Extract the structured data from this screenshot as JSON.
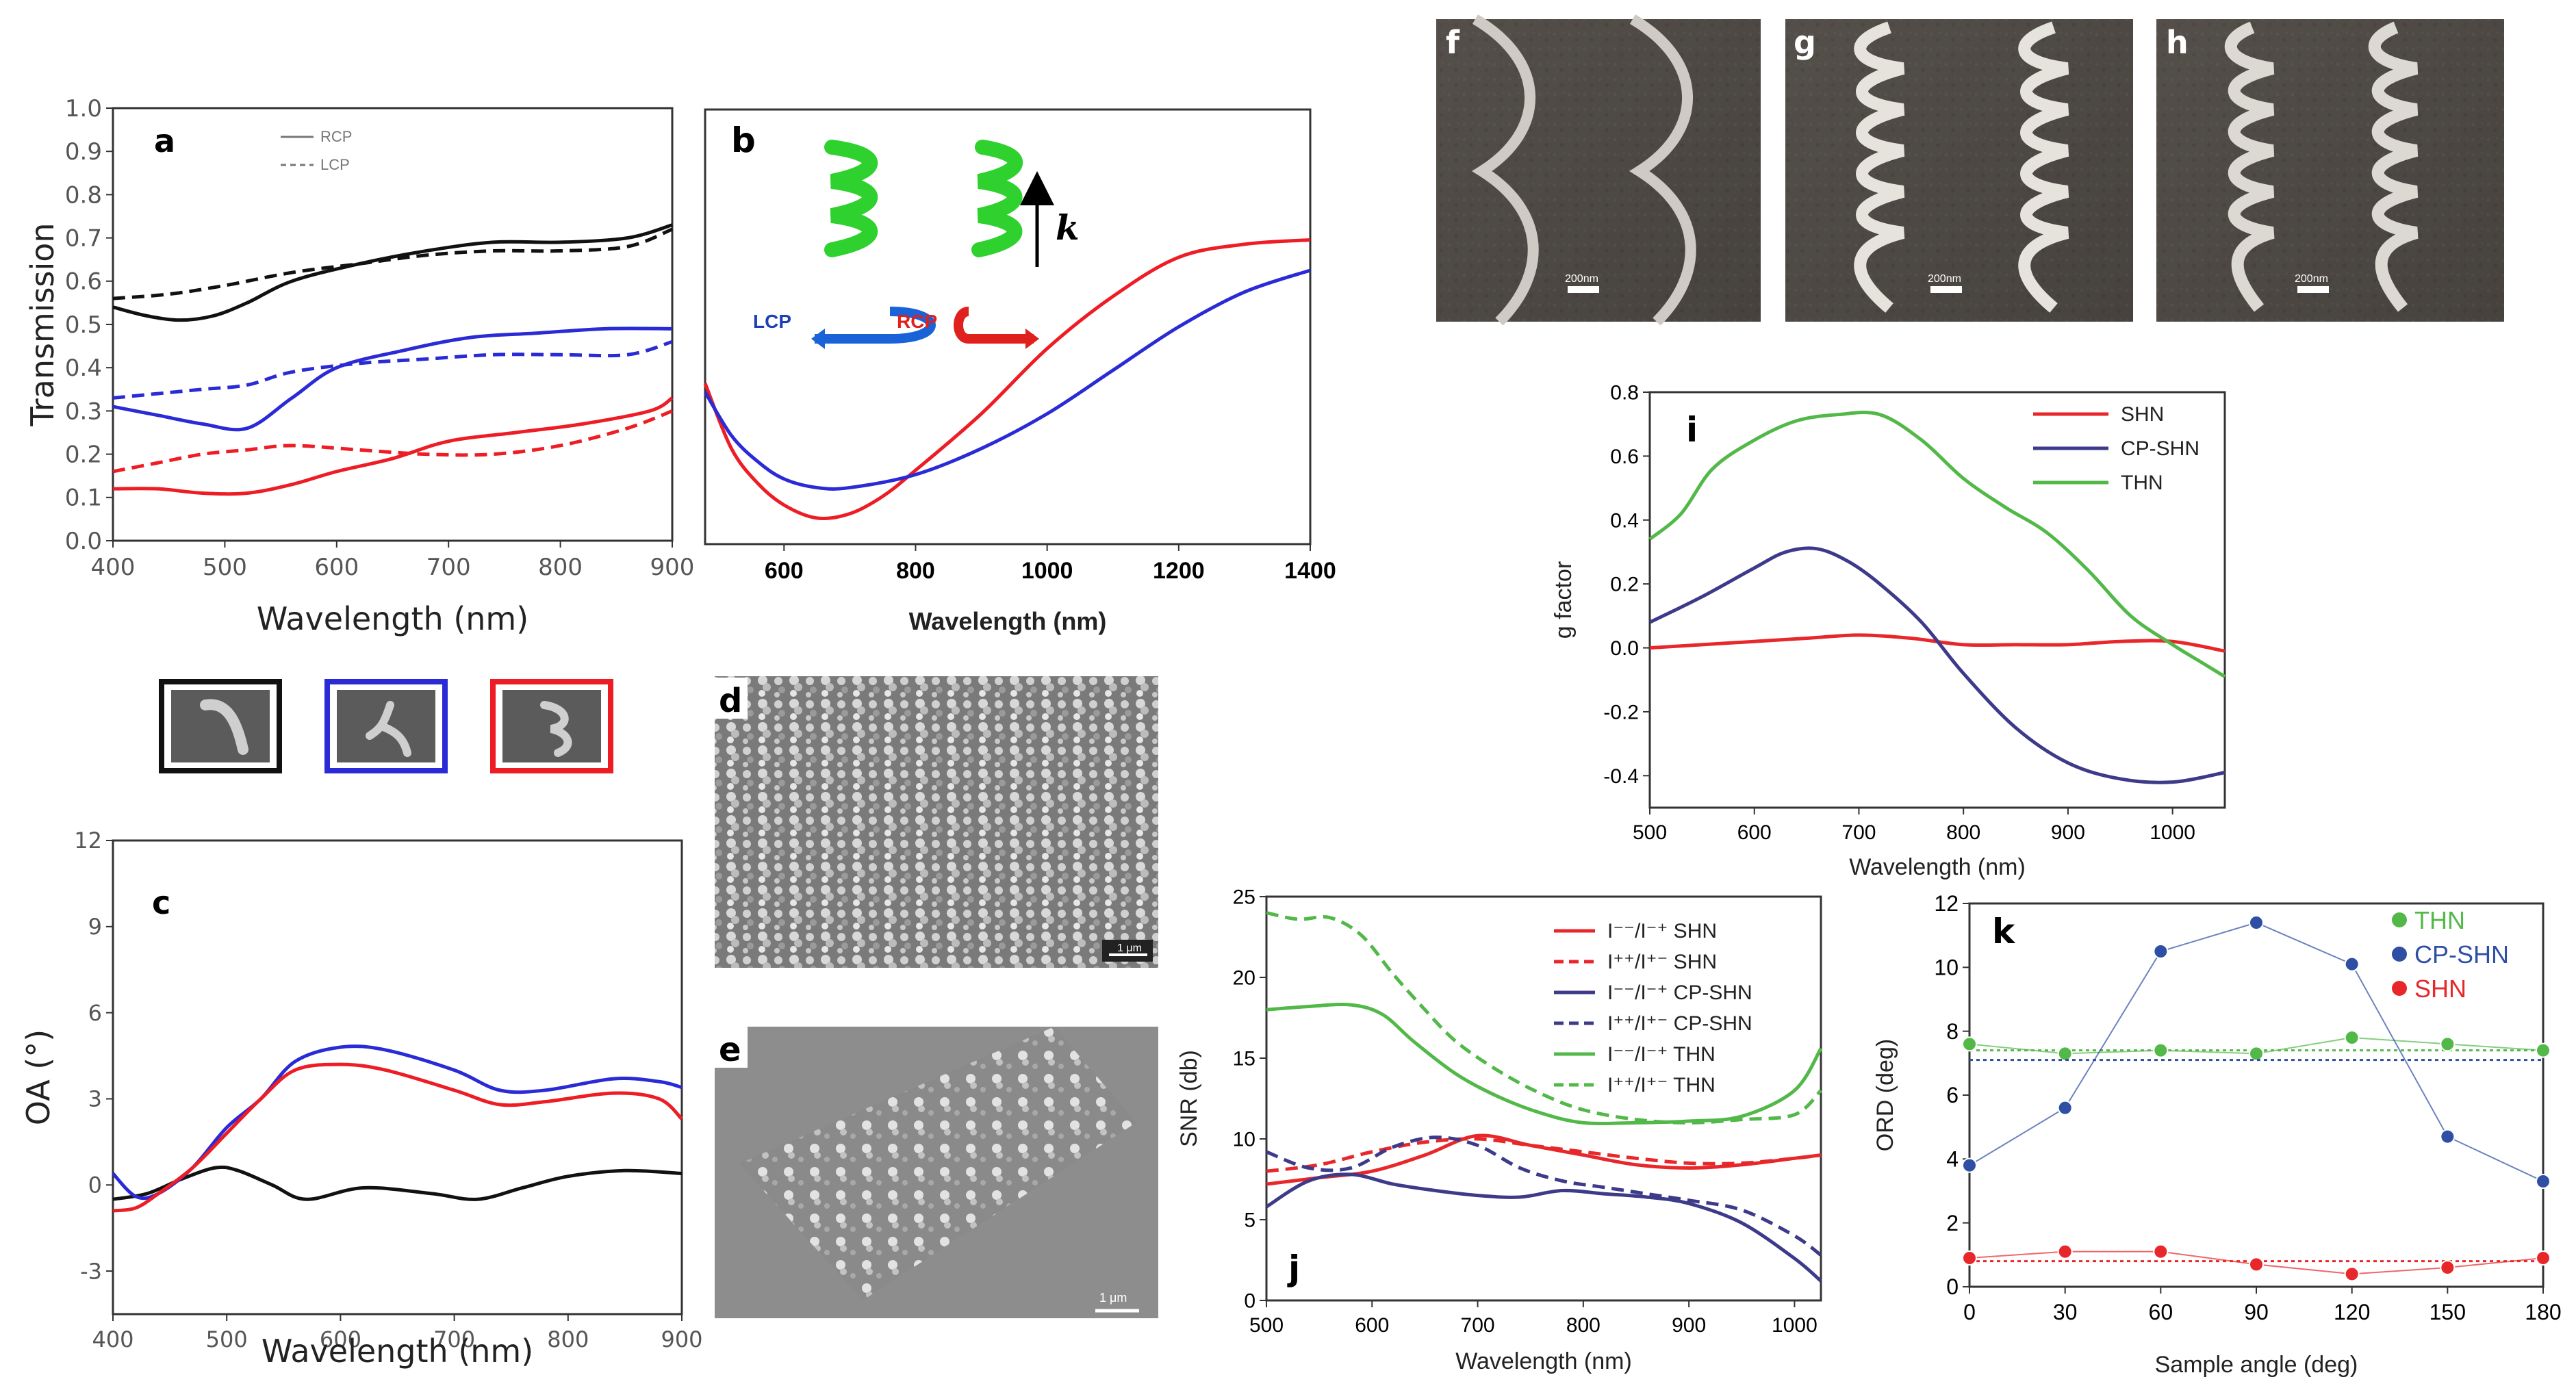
{
  "chart_data": [
    {
      "id": "a",
      "type": "line",
      "panel_label": "a",
      "xlabel": "Wavelength (nm)",
      "ylabel": "Transmission",
      "xlim": [
        400,
        900
      ],
      "ylim": [
        0,
        1.0
      ],
      "xticks": [
        "400",
        "500",
        "600",
        "700",
        "800",
        "900"
      ],
      "yticks": [
        "0.0",
        "0.1",
        "0.2",
        "0.3",
        "0.4",
        "0.5",
        "0.6",
        "0.7",
        "0.8",
        "0.9",
        "1.0"
      ],
      "legend": [
        "RCP",
        "LCP"
      ],
      "colors": {
        "black": "#111111",
        "blue": "#2a2ad6",
        "red": "#ee1c24"
      },
      "series": [
        {
          "name": "black RCP",
          "color": "#111111",
          "dash": false,
          "x": [
            400,
            430,
            460,
            490,
            520,
            560,
            620,
            680,
            740,
            800,
            860,
            900
          ],
          "y": [
            0.54,
            0.52,
            0.51,
            0.52,
            0.55,
            0.6,
            0.64,
            0.67,
            0.69,
            0.69,
            0.7,
            0.73
          ]
        },
        {
          "name": "black LCP",
          "color": "#111111",
          "dash": true,
          "x": [
            400,
            450,
            500,
            560,
            620,
            680,
            740,
            800,
            860,
            900
          ],
          "y": [
            0.56,
            0.57,
            0.59,
            0.62,
            0.64,
            0.66,
            0.67,
            0.67,
            0.68,
            0.72
          ]
        },
        {
          "name": "blue RCP",
          "color": "#2a2ad6",
          "dash": false,
          "x": [
            400,
            440,
            480,
            520,
            560,
            600,
            660,
            720,
            780,
            840,
            900
          ],
          "y": [
            0.31,
            0.29,
            0.27,
            0.26,
            0.33,
            0.4,
            0.44,
            0.47,
            0.48,
            0.49,
            0.49
          ]
        },
        {
          "name": "blue LCP",
          "color": "#2a2ad6",
          "dash": true,
          "x": [
            400,
            440,
            480,
            520,
            560,
            620,
            680,
            740,
            800,
            860,
            900
          ],
          "y": [
            0.33,
            0.34,
            0.35,
            0.36,
            0.39,
            0.41,
            0.42,
            0.43,
            0.43,
            0.43,
            0.46
          ]
        },
        {
          "name": "red RCP",
          "color": "#ee1c24",
          "dash": false,
          "x": [
            400,
            440,
            480,
            520,
            560,
            600,
            650,
            700,
            760,
            820,
            880,
            900
          ],
          "y": [
            0.12,
            0.12,
            0.11,
            0.11,
            0.13,
            0.16,
            0.19,
            0.23,
            0.25,
            0.27,
            0.3,
            0.33
          ]
        },
        {
          "name": "red LCP",
          "color": "#ee1c24",
          "dash": true,
          "x": [
            400,
            440,
            480,
            520,
            560,
            620,
            680,
            740,
            800,
            860,
            900
          ],
          "y": [
            0.16,
            0.18,
            0.2,
            0.21,
            0.22,
            0.21,
            0.2,
            0.2,
            0.22,
            0.26,
            0.3
          ]
        }
      ]
    },
    {
      "id": "b",
      "type": "line",
      "panel_label": "b",
      "xlabel": "Wavelength (nm)",
      "ylabel": "",
      "xlim": [
        480,
        1400
      ],
      "ylim": [
        0,
        1
      ],
      "xticks": [
        "600",
        "800",
        "1000",
        "1200",
        "1400"
      ],
      "annotations": [
        "LCP",
        "RCP",
        "k"
      ],
      "series": [
        {
          "name": "red",
          "color": "#ee1c24",
          "x": [
            480,
            520,
            560,
            600,
            650,
            700,
            750,
            800,
            900,
            1000,
            1100,
            1200,
            1300,
            1400
          ],
          "y": [
            0.37,
            0.22,
            0.14,
            0.09,
            0.06,
            0.07,
            0.11,
            0.17,
            0.3,
            0.45,
            0.57,
            0.66,
            0.69,
            0.7
          ]
        },
        {
          "name": "blue",
          "color": "#2a2ad6",
          "x": [
            480,
            520,
            560,
            600,
            650,
            700,
            800,
            900,
            1000,
            1100,
            1200,
            1300,
            1400
          ],
          "y": [
            0.35,
            0.25,
            0.19,
            0.15,
            0.13,
            0.13,
            0.16,
            0.22,
            0.3,
            0.4,
            0.5,
            0.58,
            0.63
          ]
        }
      ]
    },
    {
      "id": "c",
      "type": "line",
      "panel_label": "c",
      "xlabel": "Wavelength (nm)",
      "ylabel": "OA (°)",
      "xlim": [
        400,
        900
      ],
      "ylim": [
        -4.5,
        12
      ],
      "xticks": [
        "400",
        "500",
        "600",
        "700",
        "800",
        "900"
      ],
      "yticks": [
        "-3",
        "0",
        "3",
        "6",
        "9",
        "12"
      ],
      "series": [
        {
          "name": "black",
          "color": "#111111",
          "x": [
            400,
            430,
            460,
            490,
            510,
            540,
            570,
            620,
            680,
            720,
            760,
            800,
            850,
            900
          ],
          "y": [
            -0.5,
            -0.3,
            0.2,
            0.6,
            0.5,
            0.0,
            -0.5,
            -0.1,
            -0.3,
            -0.5,
            -0.1,
            0.3,
            0.5,
            0.4
          ]
        },
        {
          "name": "blue",
          "color": "#2a2ad6",
          "x": [
            400,
            420,
            440,
            470,
            500,
            530,
            560,
            600,
            640,
            700,
            740,
            780,
            840,
            880,
            900
          ],
          "y": [
            0.4,
            -0.4,
            -0.3,
            0.6,
            2.0,
            3.0,
            4.3,
            4.8,
            4.7,
            4.0,
            3.3,
            3.3,
            3.7,
            3.6,
            3.4
          ]
        },
        {
          "name": "red",
          "color": "#ee1c24",
          "x": [
            400,
            420,
            440,
            470,
            500,
            530,
            560,
            600,
            640,
            700,
            740,
            780,
            840,
            880,
            900
          ],
          "y": [
            -0.9,
            -0.8,
            -0.3,
            0.6,
            1.8,
            3.0,
            4.0,
            4.2,
            4.0,
            3.3,
            2.8,
            2.9,
            3.2,
            3.0,
            2.3
          ]
        }
      ]
    },
    {
      "id": "i",
      "type": "line",
      "panel_label": "i",
      "xlabel": "Wavelength (nm)",
      "ylabel": "g factor",
      "xlim": [
        500,
        1050
      ],
      "ylim": [
        -0.5,
        0.8
      ],
      "xticks": [
        "500",
        "600",
        "700",
        "800",
        "900",
        "1000"
      ],
      "yticks": [
        "-0.4",
        "-0.2",
        "0.0",
        "0.2",
        "0.4",
        "0.6",
        "0.8"
      ],
      "legend": [
        "SHN",
        "CP-SHN",
        "THN"
      ],
      "series": [
        {
          "name": "SHN",
          "color": "#e8272a",
          "x": [
            500,
            550,
            600,
            650,
            700,
            750,
            800,
            850,
            900,
            950,
            1000,
            1050
          ],
          "y": [
            0.0,
            0.01,
            0.02,
            0.03,
            0.04,
            0.03,
            0.01,
            0.01,
            0.01,
            0.02,
            0.02,
            -0.01
          ]
        },
        {
          "name": "CP-SHN",
          "color": "#3d3a8a",
          "x": [
            500,
            550,
            600,
            630,
            660,
            690,
            720,
            760,
            800,
            850,
            900,
            950,
            1000,
            1050
          ],
          "y": [
            0.08,
            0.16,
            0.25,
            0.3,
            0.31,
            0.27,
            0.2,
            0.08,
            -0.08,
            -0.25,
            -0.36,
            -0.41,
            -0.42,
            -0.39
          ]
        },
        {
          "name": "THN",
          "color": "#52b848",
          "x": [
            500,
            530,
            560,
            600,
            640,
            680,
            720,
            760,
            800,
            840,
            880,
            920,
            960,
            1000,
            1030,
            1050
          ],
          "y": [
            0.34,
            0.42,
            0.56,
            0.65,
            0.71,
            0.73,
            0.73,
            0.65,
            0.53,
            0.44,
            0.36,
            0.24,
            0.1,
            0.01,
            -0.05,
            -0.09
          ]
        }
      ]
    },
    {
      "id": "j",
      "type": "line",
      "panel_label": "j",
      "xlabel": "Wavelength (nm)",
      "ylabel": "SNR (db)",
      "xlim": [
        500,
        1025
      ],
      "ylim": [
        0,
        25
      ],
      "xticks": [
        "500",
        "600",
        "700",
        "800",
        "900",
        "1000"
      ],
      "yticks": [
        "0",
        "5",
        "10",
        "15",
        "20",
        "25"
      ],
      "legend": [
        "I⁻⁻/I⁻⁺  SHN",
        "I⁺⁺/I⁺⁻  SHN",
        "I⁻⁻/I⁻⁺  CP-SHN",
        "I⁺⁺/I⁺⁻  CP-SHN",
        "I⁻⁻/I⁻⁺  THN",
        "I⁺⁺/I⁺⁻  THN"
      ],
      "series": [
        {
          "name": "I--/I-+ SHN",
          "color": "#e8272a",
          "dash": false,
          "x": [
            500,
            550,
            600,
            650,
            700,
            750,
            800,
            850,
            900,
            950,
            1000,
            1025
          ],
          "y": [
            7.2,
            7.6,
            8.0,
            9.0,
            10.2,
            9.6,
            9.0,
            8.4,
            8.2,
            8.4,
            8.8,
            9.0
          ]
        },
        {
          "name": "I++/I+- SHN",
          "color": "#e8272a",
          "dash": true,
          "x": [
            500,
            550,
            600,
            650,
            700,
            750,
            800,
            850,
            900,
            950,
            1000,
            1025
          ],
          "y": [
            8.0,
            8.4,
            9.2,
            9.8,
            10.0,
            9.6,
            9.2,
            8.8,
            8.5,
            8.5,
            8.8,
            9.0
          ]
        },
        {
          "name": "I--/I-+ CP-SHN",
          "color": "#3d3a8a",
          "dash": false,
          "x": [
            500,
            540,
            580,
            620,
            660,
            700,
            740,
            780,
            820,
            860,
            900,
            950,
            1000,
            1025
          ],
          "y": [
            5.8,
            7.4,
            7.8,
            7.2,
            6.8,
            6.5,
            6.4,
            6.8,
            6.6,
            6.4,
            6.0,
            4.8,
            2.6,
            1.2
          ]
        },
        {
          "name": "I++/I+- CP-SHN",
          "color": "#3d3a8a",
          "dash": true,
          "x": [
            500,
            540,
            580,
            620,
            660,
            700,
            740,
            780,
            820,
            860,
            900,
            950,
            1000,
            1025
          ],
          "y": [
            9.2,
            8.2,
            8.2,
            9.5,
            10.1,
            9.6,
            8.2,
            7.4,
            7.0,
            6.6,
            6.2,
            5.6,
            4.0,
            2.8
          ]
        },
        {
          "name": "I--/I-+ THN",
          "color": "#52b848",
          "dash": false,
          "x": [
            500,
            540,
            580,
            610,
            640,
            680,
            720,
            760,
            800,
            850,
            900,
            950,
            1000,
            1025
          ],
          "y": [
            18.0,
            18.2,
            18.3,
            17.7,
            16.0,
            14.0,
            12.6,
            11.6,
            11.0,
            11.0,
            11.1,
            11.4,
            13.0,
            15.6
          ]
        },
        {
          "name": "I++/I+- THN",
          "color": "#52b848",
          "dash": true,
          "x": [
            500,
            530,
            560,
            590,
            620,
            650,
            680,
            720,
            760,
            800,
            850,
            900,
            950,
            1000,
            1025
          ],
          "y": [
            24.0,
            23.6,
            23.7,
            22.6,
            20.2,
            18.0,
            16.0,
            14.2,
            12.8,
            11.8,
            11.2,
            11.0,
            11.2,
            11.5,
            13.0
          ]
        }
      ]
    },
    {
      "id": "k",
      "type": "scatter",
      "panel_label": "k",
      "xlabel": "Sample angle (deg)",
      "ylabel": "ORD (deg)",
      "xlim": [
        0,
        180
      ],
      "ylim": [
        0,
        12
      ],
      "xticks": [
        "0",
        "30",
        "60",
        "90",
        "120",
        "150",
        "180"
      ],
      "yticks": [
        "0",
        "2",
        "4",
        "6",
        "8",
        "10",
        "12"
      ],
      "legend": [
        "THN",
        "CP-SHN",
        "SHN"
      ],
      "series": [
        {
          "name": "THN",
          "color": "#52b848",
          "x": [
            0,
            30,
            60,
            90,
            120,
            150,
            180
          ],
          "y": [
            7.6,
            7.3,
            7.4,
            7.3,
            7.8,
            7.6,
            7.4
          ],
          "ref": 7.4
        },
        {
          "name": "CP-SHN",
          "color": "#2e4fa3",
          "x": [
            0,
            30,
            60,
            90,
            120,
            150,
            180
          ],
          "y": [
            3.8,
            5.6,
            10.5,
            11.4,
            10.1,
            4.7,
            3.3
          ],
          "ref": 7.1
        },
        {
          "name": "SHN",
          "color": "#e8272a",
          "x": [
            0,
            30,
            60,
            90,
            120,
            150,
            180
          ],
          "y": [
            0.9,
            1.1,
            1.1,
            0.7,
            0.4,
            0.6,
            0.9
          ],
          "ref": 0.8
        }
      ]
    }
  ],
  "images": {
    "d": {
      "label": "d",
      "scale": "1 μm"
    },
    "e": {
      "label": "e",
      "scale": "1 μm"
    },
    "f": {
      "label": "f",
      "scale": "200nm"
    },
    "g": {
      "label": "g",
      "scale": "200nm"
    },
    "h": {
      "label": "h",
      "scale": "200nm"
    }
  }
}
